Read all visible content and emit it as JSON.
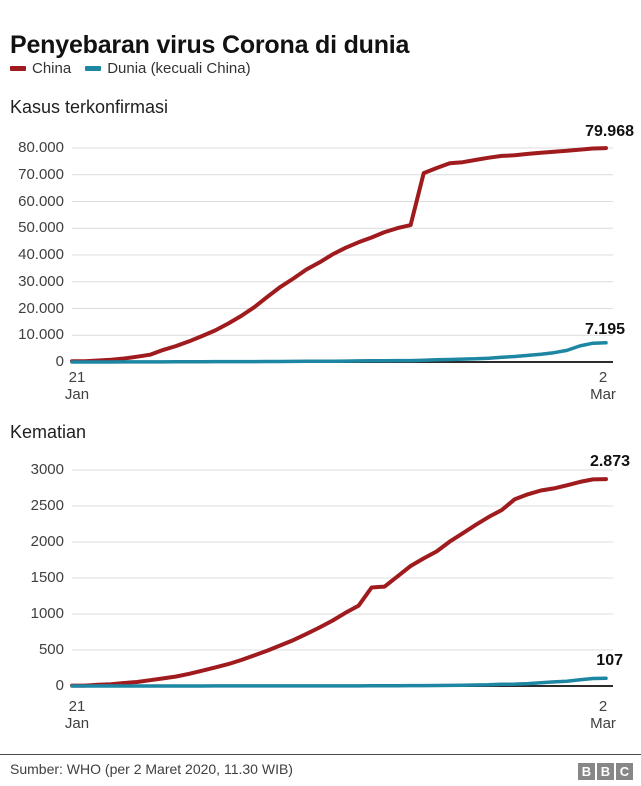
{
  "header": {
    "title": "Penyebaran virus Corona di dunia"
  },
  "legend": {
    "items": [
      {
        "label": "China",
        "color": "#9f1b1e"
      },
      {
        "label": "Dunia (kecuali China)",
        "color": "#1d87a3"
      }
    ]
  },
  "colors": {
    "china": "#9f1b1e",
    "world": "#1d87a3",
    "grid": "#dcdcdc",
    "axis": "#2b2b2b"
  },
  "chart_data": [
    {
      "type": "line",
      "title": "Kasus terkonfirmasi",
      "xlabel": "",
      "ylabel": "",
      "ylim": [
        0,
        80000
      ],
      "ytick_step": 10000,
      "ytick_labels": [
        "0",
        "10.000",
        "20.000",
        "30.000",
        "40.000",
        "50.000",
        "60.000",
        "70.000",
        "80.000"
      ],
      "x_ticks": [
        {
          "day": "21",
          "month": "Jan"
        },
        {
          "day": "2",
          "month": "Mar"
        }
      ],
      "grid": true,
      "legend_position": "top",
      "dates": [
        "21 Jan",
        "22 Jan",
        "23 Jan",
        "24 Jan",
        "25 Jan",
        "26 Jan",
        "27 Jan",
        "28 Jan",
        "29 Jan",
        "30 Jan",
        "31 Jan",
        "1 Feb",
        "2 Feb",
        "3 Feb",
        "4 Feb",
        "5 Feb",
        "6 Feb",
        "7 Feb",
        "8 Feb",
        "9 Feb",
        "10 Feb",
        "11 Feb",
        "12 Feb",
        "13 Feb",
        "14 Feb",
        "15 Feb",
        "16 Feb",
        "17 Feb",
        "18 Feb",
        "19 Feb",
        "20 Feb",
        "21 Feb",
        "22 Feb",
        "23 Feb",
        "24 Feb",
        "25 Feb",
        "26 Feb",
        "27 Feb",
        "28 Feb",
        "29 Feb",
        "1 Mar",
        "2 Mar"
      ],
      "series": [
        {
          "name": "China",
          "color_key": "china",
          "end_label": "79.968",
          "values": [
            278,
            309,
            571,
            830,
            1297,
            1985,
            2741,
            4537,
            5997,
            7736,
            9720,
            11821,
            14411,
            17238,
            20471,
            24363,
            28060,
            31211,
            34598,
            37251,
            40235,
            42708,
            44730,
            46550,
            48548,
            50054,
            51174,
            70635,
            72528,
            74280,
            74675,
            75569,
            76392,
            77042,
            77262,
            77780,
            78191,
            78630,
            78961,
            79394,
            79824,
            79968
          ]
        },
        {
          "name": "Dunia (kecuali China)",
          "color_key": "world",
          "end_label": "7.195",
          "values": [
            4,
            6,
            10,
            11,
            23,
            29,
            37,
            56,
            68,
            82,
            106,
            132,
            146,
            153,
            159,
            186,
            191,
            216,
            270,
            288,
            307,
            319,
            395,
            441,
            447,
            505,
            526,
            683,
            804,
            924,
            1073,
            1200,
            1402,
            1769,
            2069,
            2459,
            2918,
            3474,
            4351,
            6009,
            7034,
            7195
          ]
        }
      ]
    },
    {
      "type": "line",
      "title": "Kematian",
      "xlabel": "",
      "ylabel": "",
      "ylim": [
        0,
        3000
      ],
      "ytick_step": 500,
      "ytick_labels": [
        "0",
        "500",
        "1000",
        "1500",
        "2000",
        "2500",
        "3000"
      ],
      "x_ticks": [
        {
          "day": "21",
          "month": "Jan"
        },
        {
          "day": "2",
          "month": "Mar"
        }
      ],
      "grid": true,
      "legend_position": "top",
      "dates": [
        "21 Jan",
        "22 Jan",
        "23 Jan",
        "24 Jan",
        "25 Jan",
        "26 Jan",
        "27 Jan",
        "28 Jan",
        "29 Jan",
        "30 Jan",
        "31 Jan",
        "1 Feb",
        "2 Feb",
        "3 Feb",
        "4 Feb",
        "5 Feb",
        "6 Feb",
        "7 Feb",
        "8 Feb",
        "9 Feb",
        "10 Feb",
        "11 Feb",
        "12 Feb",
        "13 Feb",
        "14 Feb",
        "15 Feb",
        "16 Feb",
        "17 Feb",
        "18 Feb",
        "19 Feb",
        "20 Feb",
        "21 Feb",
        "22 Feb",
        "23 Feb",
        "24 Feb",
        "25 Feb",
        "26 Feb",
        "27 Feb",
        "28 Feb",
        "29 Feb",
        "1 Mar",
        "2 Mar"
      ],
      "series": [
        {
          "name": "China",
          "color_key": "china",
          "end_label": "2.873",
          "values": [
            6,
            6,
            17,
            25,
            41,
            56,
            80,
            106,
            132,
            170,
            213,
            259,
            304,
            361,
            425,
            491,
            564,
            637,
            723,
            812,
            909,
            1017,
            1114,
            1368,
            1381,
            1524,
            1666,
            1772,
            1870,
            2006,
            2121,
            2239,
            2348,
            2445,
            2595,
            2663,
            2715,
            2744,
            2788,
            2835,
            2870,
            2873
          ]
        },
        {
          "name": "Dunia (kecuali China)",
          "color_key": "world",
          "end_label": "107",
          "values": [
            0,
            0,
            0,
            0,
            0,
            0,
            0,
            0,
            0,
            0,
            0,
            1,
            1,
            1,
            1,
            1,
            1,
            1,
            2,
            2,
            2,
            2,
            2,
            3,
            4,
            4,
            5,
            5,
            7,
            9,
            11,
            14,
            17,
            23,
            27,
            34,
            44,
            57,
            67,
            86,
            104,
            107
          ]
        }
      ]
    }
  ],
  "footer": {
    "source": "Sumber: WHO (per 2 Maret 2020, 11.30 WIB)",
    "logo": [
      "B",
      "B",
      "C"
    ]
  }
}
